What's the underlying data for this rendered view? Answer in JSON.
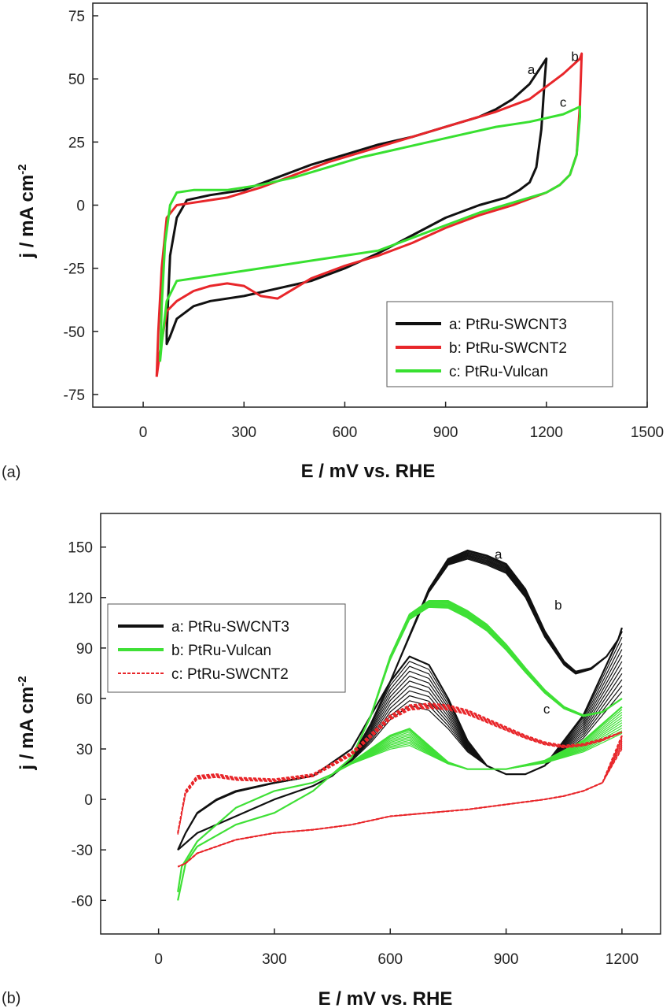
{
  "chart_data": [
    {
      "type": "line",
      "panel_label": "(a)",
      "xlabel": "E / mV vs. RHE",
      "ylabel": "j / mA cm",
      "ylabel_sup": "-2",
      "xlim": [
        -150,
        1500
      ],
      "ylim": [
        -80,
        80
      ],
      "xticks": [
        0,
        300,
        600,
        900,
        1200,
        1500
      ],
      "yticks": [
        -75,
        -50,
        -25,
        0,
        25,
        50,
        75
      ],
      "legend_position": "bottom-right",
      "series": [
        {
          "name": "a: PtRu-SWCNT3",
          "label": "a",
          "color": "#111111",
          "x": [
            70,
            80,
            100,
            130,
            200,
            300,
            400,
            500,
            600,
            700,
            800,
            900,
            1000,
            1050,
            1100,
            1150,
            1185,
            1200,
            1195,
            1185,
            1170,
            1150,
            1120,
            1080,
            1000,
            900,
            800,
            700,
            600,
            500,
            400,
            300,
            200,
            150,
            100,
            80,
            70,
            70
          ],
          "y": [
            -50,
            -20,
            -5,
            2,
            4,
            6,
            11,
            16,
            20,
            24,
            27,
            31,
            35,
            38,
            42,
            48,
            55,
            58,
            50,
            30,
            15,
            9,
            6,
            3,
            0,
            -5,
            -12,
            -19,
            -25,
            -30,
            -33,
            -36,
            -38,
            -40,
            -45,
            -52,
            -55,
            -50
          ],
          "annot": {
            "x": 1155,
            "y": 52
          }
        },
        {
          "name": "b: PtRu-SWCNT2",
          "label": "b",
          "color": "#e8262a",
          "x": [
            40,
            45,
            55,
            70,
            100,
            150,
            250,
            350,
            450,
            550,
            650,
            750,
            850,
            950,
            1050,
            1150,
            1250,
            1300,
            1305,
            1300,
            1290,
            1270,
            1240,
            1200,
            1100,
            1000,
            900,
            800,
            700,
            600,
            500,
            450,
            400,
            350,
            300,
            250,
            200,
            150,
            100,
            70,
            50,
            40
          ],
          "y": [
            -68,
            -50,
            -25,
            -5,
            0,
            1,
            3,
            7,
            12,
            17,
            21,
            25,
            29,
            33,
            37,
            42,
            52,
            58,
            60,
            40,
            20,
            12,
            8,
            5,
            0,
            -4,
            -9,
            -15,
            -20,
            -24,
            -29,
            -33,
            -37,
            -36,
            -32,
            -31,
            -32,
            -34,
            -38,
            -42,
            -58,
            -68
          ],
          "annot": {
            "x": 1285,
            "y": 57
          }
        },
        {
          "name": "c: PtRu-Vulcan",
          "label": "c",
          "color": "#38e030",
          "x": [
            50,
            55,
            65,
            80,
            100,
            150,
            250,
            350,
            450,
            550,
            650,
            750,
            850,
            950,
            1050,
            1150,
            1250,
            1300,
            1300,
            1290,
            1270,
            1240,
            1200,
            1100,
            1000,
            900,
            800,
            700,
            600,
            500,
            400,
            300,
            200,
            150,
            100,
            70,
            55,
            50
          ],
          "y": [
            -62,
            -40,
            -15,
            0,
            5,
            6,
            6,
            8,
            11,
            15,
            19,
            22,
            25,
            28,
            31,
            33,
            36,
            39,
            35,
            20,
            12,
            8,
            5,
            1,
            -3,
            -8,
            -13,
            -18,
            -20,
            -22,
            -24,
            -26,
            -28,
            -29,
            -30,
            -38,
            -55,
            -62
          ],
          "annot": {
            "x": 1250,
            "y": 39
          }
        }
      ]
    },
    {
      "type": "line",
      "panel_label": "(b)",
      "xlabel": "E / mV vs. RHE",
      "ylabel": "j / mA cm",
      "ylabel_sup": "-2",
      "xlim": [
        -150,
        1300
      ],
      "ylim": [
        -80,
        170
      ],
      "xticks": [
        0,
        300,
        600,
        900,
        1200
      ],
      "yticks": [
        -60,
        -30,
        0,
        30,
        60,
        90,
        120,
        150
      ],
      "legend_position": "top-left",
      "series": [
        {
          "name": "a: PtRu-SWCNT3",
          "label": "a",
          "color": "#111111",
          "anodic_x": [
            50,
            70,
            100,
            150,
            200,
            300,
            400,
            500,
            600,
            700,
            750,
            800,
            850,
            900,
            950,
            1000,
            1050,
            1080,
            1120,
            1160,
            1190,
            1200
          ],
          "anodic_y": [
            -30,
            -20,
            -8,
            0,
            5,
            10,
            14,
            30,
            70,
            125,
            143,
            148,
            145,
            140,
            125,
            100,
            82,
            76,
            78,
            85,
            95,
            102
          ],
          "cathodic_x": [
            1200,
            1100,
            1000,
            950,
            900,
            850,
            800,
            750,
            700,
            650,
            600,
            550,
            500,
            450,
            400,
            300,
            200,
            100,
            60,
            50
          ],
          "cathodic_y": [
            100,
            50,
            20,
            15,
            15,
            20,
            35,
            60,
            80,
            85,
            70,
            45,
            25,
            14,
            8,
            0,
            -10,
            -20,
            -28,
            -30
          ],
          "annot": {
            "x": 880,
            "y": 143
          }
        },
        {
          "name": "b: PtRu-Vulcan",
          "label": "b",
          "color": "#3fe036",
          "anodic_x": [
            50,
            70,
            100,
            200,
            300,
            400,
            500,
            550,
            600,
            650,
            700,
            750,
            800,
            850,
            900,
            950,
            1000,
            1050,
            1100,
            1150,
            1200
          ],
          "anodic_y": [
            -60,
            -38,
            -28,
            -15,
            -8,
            5,
            25,
            50,
            85,
            110,
            118,
            118,
            112,
            104,
            92,
            78,
            65,
            55,
            50,
            52,
            60
          ],
          "cathodic_x": [
            1200,
            1100,
            1000,
            900,
            800,
            750,
            700,
            650,
            600,
            550,
            500,
            450,
            400,
            300,
            200,
            100,
            60,
            50
          ],
          "cathodic_y": [
            55,
            35,
            23,
            18,
            18,
            22,
            32,
            42,
            38,
            30,
            22,
            15,
            10,
            5,
            -5,
            -25,
            -40,
            -55
          ],
          "annot": {
            "x": 1035,
            "y": 113
          }
        },
        {
          "name": "c: PtRu-SWCNT2",
          "label": "c",
          "color": "#e8262a",
          "anodic_x": [
            50,
            70,
            100,
            150,
            200,
            300,
            400,
            500,
            600,
            650,
            700,
            750,
            800,
            850,
            900,
            950,
            1000,
            1050,
            1100,
            1150,
            1200
          ],
          "anodic_y": [
            -20,
            5,
            14,
            15,
            13,
            12,
            15,
            28,
            50,
            56,
            57,
            56,
            53,
            48,
            43,
            38,
            34,
            32,
            33,
            36,
            40
          ],
          "cathodic_x": [
            1200,
            1150,
            1100,
            1050,
            1000,
            900,
            800,
            700,
            600,
            500,
            400,
            300,
            200,
            100,
            70,
            50
          ],
          "cathodic_y": [
            38,
            10,
            5,
            2,
            0,
            -3,
            -6,
            -8,
            -10,
            -15,
            -18,
            -20,
            -24,
            -32,
            -38,
            -40
          ],
          "annot": {
            "x": 1005,
            "y": 51
          }
        }
      ]
    }
  ]
}
